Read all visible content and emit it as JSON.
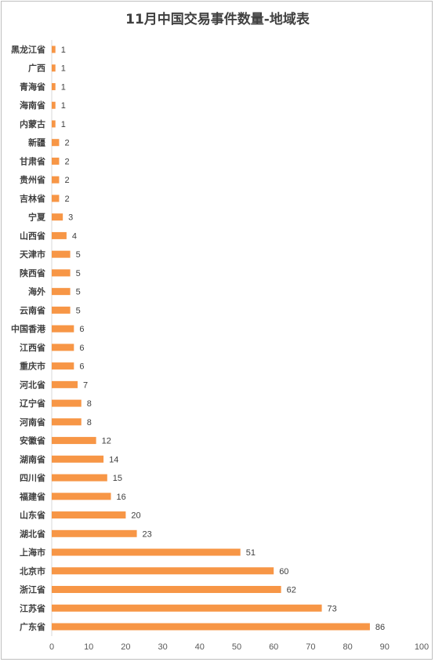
{
  "chart_data": {
    "type": "bar",
    "orientation": "horizontal",
    "title": "11月中国交易事件数量-地域表",
    "categories": [
      "黑龙江省",
      "广西",
      "青海省",
      "海南省",
      "内蒙古",
      "新疆",
      "甘肃省",
      "贵州省",
      "吉林省",
      "宁夏",
      "山西省",
      "天津市",
      "陕西省",
      "海外",
      "云南省",
      "中国香港",
      "江西省",
      "重庆市",
      "河北省",
      "辽宁省",
      "河南省",
      "安徽省",
      "湖南省",
      "四川省",
      "福建省",
      "山东省",
      "湖北省",
      "上海市",
      "北京市",
      "浙江省",
      "江苏省",
      "广东省"
    ],
    "values": [
      1,
      1,
      1,
      1,
      1,
      2,
      2,
      2,
      2,
      3,
      4,
      5,
      5,
      5,
      5,
      6,
      6,
      6,
      7,
      8,
      8,
      12,
      14,
      15,
      16,
      20,
      23,
      51,
      60,
      62,
      73,
      86
    ],
    "xlim": [
      0,
      100
    ],
    "xticks": [
      0,
      10,
      20,
      30,
      40,
      50,
      60,
      70,
      80,
      90,
      100
    ],
    "bar_color": "#F79646",
    "grid": false,
    "legend": "none"
  }
}
